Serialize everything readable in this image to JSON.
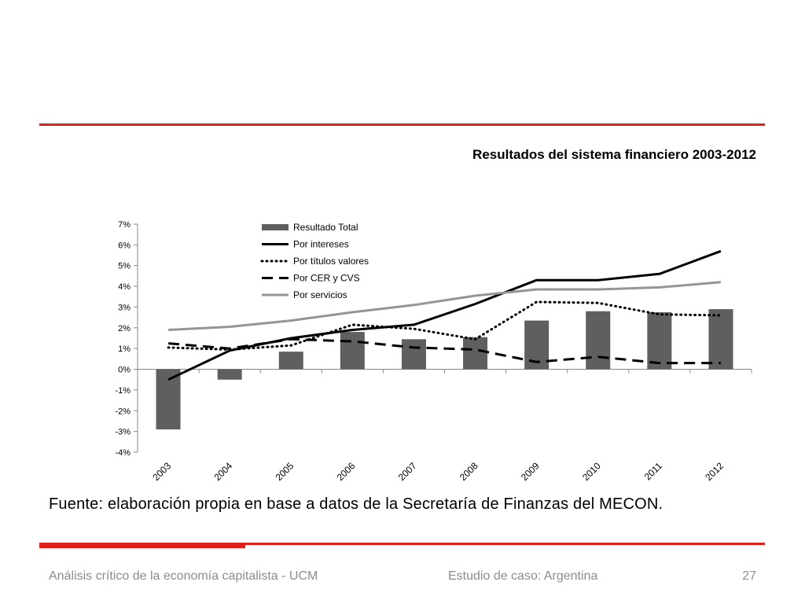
{
  "slide": {
    "source": "Fuente: elaboración propia en base a datos de la Secretaría de Finanzas del MECON.",
    "footer_left": "Análisis crítico de la economía capitalista - UCM",
    "footer_center": "Estudio de caso: Argentina",
    "page_number": "27"
  },
  "colors": {
    "accent": "#e0201d",
    "bar": "#5f5f5f",
    "line_black": "#000000",
    "line_gray": "#959595"
  },
  "chart_data": {
    "type": "bar",
    "title": "Resultados del sistema financiero 2003-2012",
    "xlabel": "",
    "ylabel": "",
    "ylim": [
      -0.04,
      0.07
    ],
    "yticks": [
      "-4%",
      "-3%",
      "-2%",
      "-1%",
      "0%",
      "1%",
      "2%",
      "3%",
      "4%",
      "5%",
      "6%",
      "7%"
    ],
    "categories": [
      "2003",
      "2004",
      "2005",
      "2006",
      "2007",
      "2008",
      "2009",
      "2010",
      "2011",
      "2012"
    ],
    "legend_position": "top-left",
    "series": [
      {
        "name": "Resultado Total",
        "type": "bar",
        "style": "bar",
        "values": [
          -0.029,
          -0.005,
          0.0085,
          0.018,
          0.0145,
          0.0155,
          0.0235,
          0.028,
          0.0275,
          0.029
        ]
      },
      {
        "name": "Por intereses",
        "type": "line",
        "style": "solid-black",
        "values": [
          -0.005,
          0.009,
          0.015,
          0.019,
          0.0215,
          0.0315,
          0.043,
          0.043,
          0.046,
          0.057
        ]
      },
      {
        "name": "Por títulos valores",
        "type": "line",
        "style": "dotted-black",
        "values": [
          0.0105,
          0.0095,
          0.0115,
          0.0215,
          0.0195,
          0.0145,
          0.0325,
          0.032,
          0.0265,
          0.026
        ]
      },
      {
        "name": "Por CER y CVS",
        "type": "line",
        "style": "dashed-black",
        "values": [
          0.0125,
          0.01,
          0.0145,
          0.0135,
          0.0105,
          0.0095,
          0.0035,
          0.006,
          0.003,
          0.003
        ]
      },
      {
        "name": "Por servicios",
        "type": "line",
        "style": "solid-gray",
        "values": [
          0.019,
          0.0205,
          0.0235,
          0.0275,
          0.031,
          0.0355,
          0.0385,
          0.0385,
          0.0395,
          0.042
        ]
      }
    ]
  }
}
